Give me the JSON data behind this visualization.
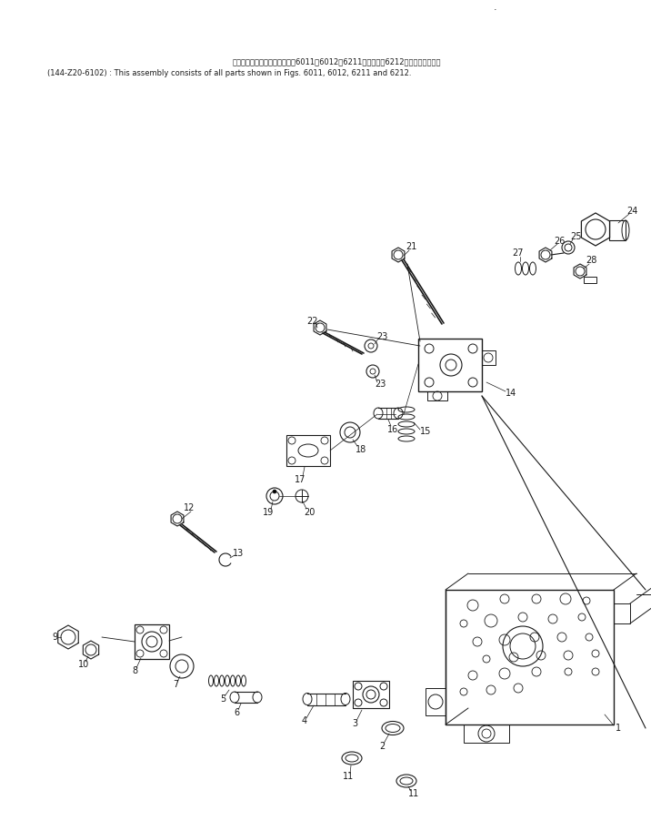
{
  "title_line1": "このアセンブリの構成部品は囷6011、6012、6211図および囷6212図まで含みます．",
  "title_line2": "(144-Z20-6102) : This assembly consists of all parts shown in Figs. 6011, 6012, 6211 and 6212.",
  "bg_color": "#ffffff",
  "lc": "#1a1a1a",
  "tc": "#1a1a1a",
  "fig_width": 7.16,
  "fig_height": 9.13,
  "dpi": 100,
  "xmax": 716,
  "ymax": 913
}
